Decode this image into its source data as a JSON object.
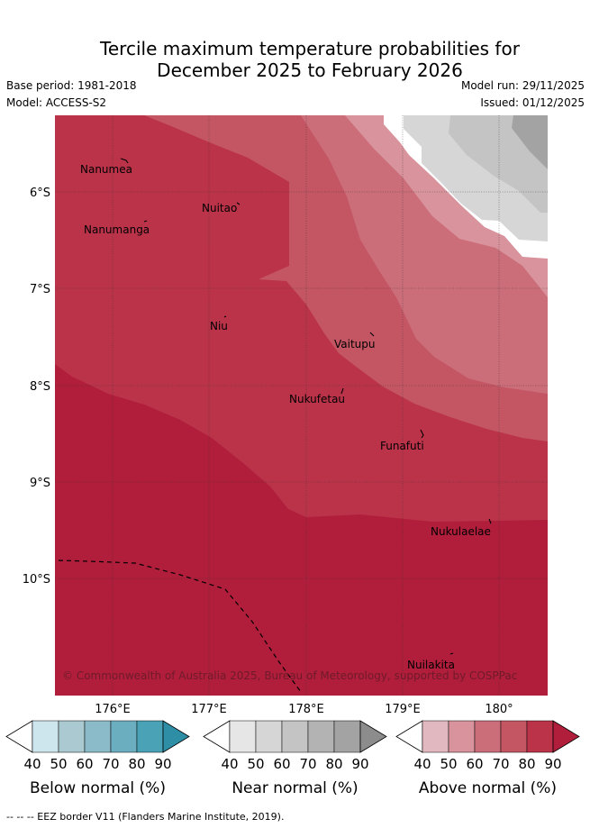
{
  "title": {
    "line1": "Tercile maximum temperature probabilities for",
    "line2": "December 2025 to February 2026"
  },
  "meta": {
    "base_period": "Base period: 1981-2018",
    "model": "Model: ACCESS-S2",
    "model_run": "Model run: 29/11/2025",
    "issued": "Issued: 01/12/2025"
  },
  "axes": {
    "lon_ticks": [
      "176°E",
      "177°E",
      "178°E",
      "179°E",
      "180°"
    ],
    "lat_ticks": [
      "6°S",
      "7°S",
      "8°S",
      "9°S",
      "10°S"
    ]
  },
  "places": [
    {
      "name": "Nanumea"
    },
    {
      "name": "Nuitao"
    },
    {
      "name": "Nanumanga"
    },
    {
      "name": "Niu"
    },
    {
      "name": "Vaitupu"
    },
    {
      "name": "Nukufetau"
    },
    {
      "name": "Funafuti"
    },
    {
      "name": "Nukulaelae"
    },
    {
      "name": "Nuilakita"
    }
  ],
  "copyright": "© Commonwealth of Australia 2025, Bureau of Meteorology, supported by COSPPac",
  "colorbars": [
    {
      "label": "Below normal (%)",
      "ticks": [
        "40",
        "50",
        "60",
        "70",
        "80",
        "90"
      ],
      "colors": [
        "#ffffff",
        "#cde5ec",
        "#aac9d0",
        "#8bbac8",
        "#6aaebf",
        "#49a2b6",
        "#2e8ea5"
      ]
    },
    {
      "label": "Near normal (%)",
      "ticks": [
        "40",
        "50",
        "60",
        "70",
        "80",
        "90"
      ],
      "colors": [
        "#ffffff",
        "#e6e6e6",
        "#d6d6d6",
        "#c4c4c4",
        "#b3b3b3",
        "#a3a3a3",
        "#8c8c8c"
      ]
    },
    {
      "label": "Above normal (%)",
      "ticks": [
        "40",
        "50",
        "60",
        "70",
        "80",
        "90"
      ],
      "colors": [
        "#ffffff",
        "#e1b8bf",
        "#d8939c",
        "#cc6e7a",
        "#c45664",
        "#bb3349",
        "#b01e3b"
      ]
    }
  ],
  "footer": "-- -- -- EEZ border V11 (Flanders Marine Institute, 2019).",
  "colors": {
    "above_80": "#bb3349",
    "above_90": "#b01e3b",
    "above_70": "#c45664",
    "above_60": "#cc6e7a",
    "above_50": "#d8939c",
    "near_50": "#d6d6d6",
    "near_60": "#c4c4c4",
    "near_70": "#a3a3a3"
  }
}
